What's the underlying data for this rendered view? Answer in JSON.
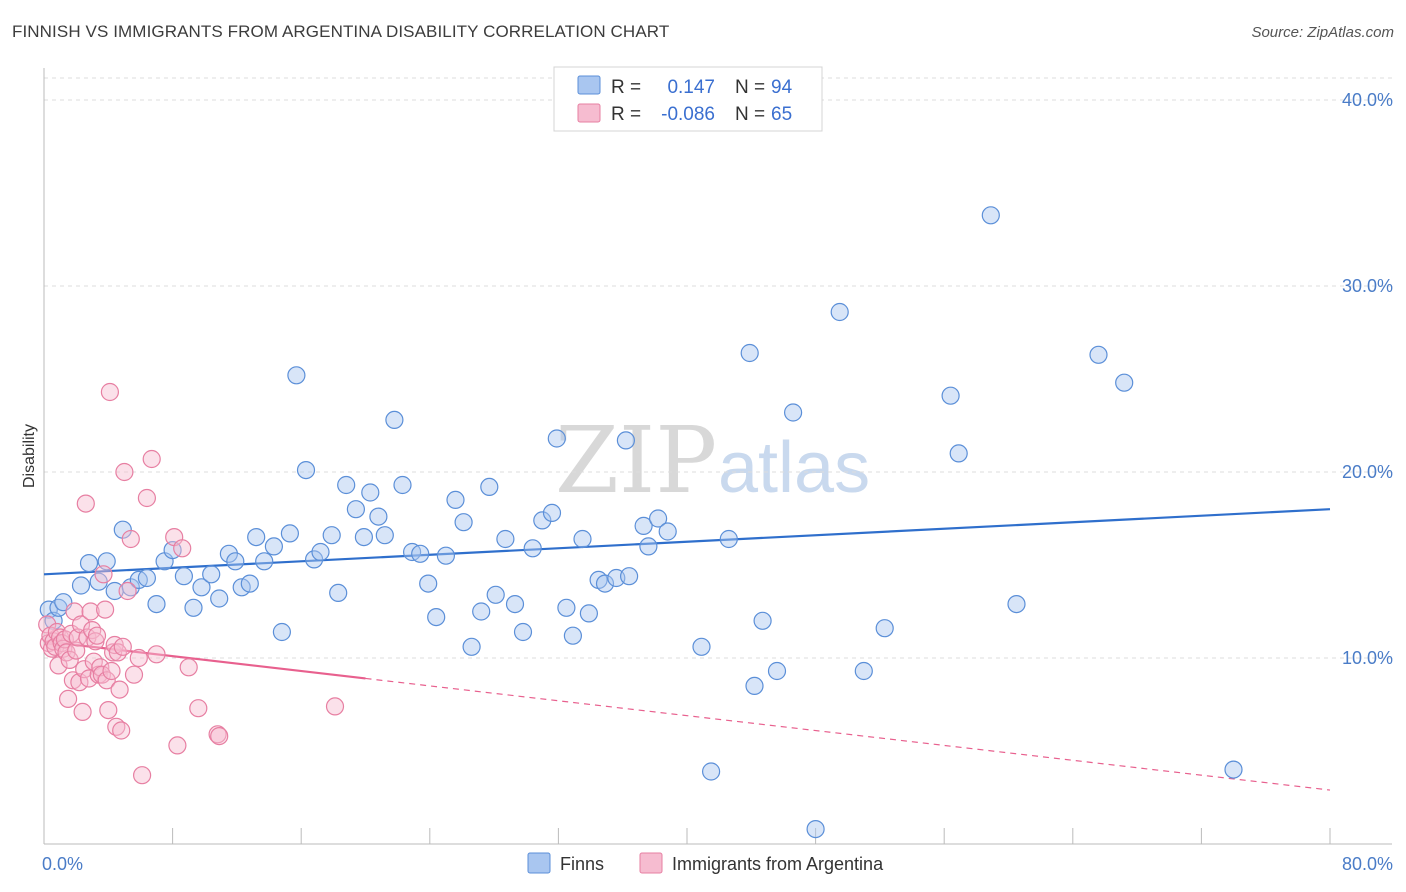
{
  "header": {
    "title": "FINNISH VS IMMIGRANTS FROM ARGENTINA DISABILITY CORRELATION CHART",
    "source": "Source: ZipAtlas.com"
  },
  "watermark": {
    "zip": "ZIP",
    "atlas": "atlas"
  },
  "legend": {
    "r_label": "R =",
    "n_label": "N =",
    "finns": {
      "r": "0.147",
      "n": "94"
    },
    "argentina": {
      "r": "-0.086",
      "n": "65"
    }
  },
  "colors": {
    "finns_stroke": "#5b8fd8",
    "finns_fill": "#a9c6f0",
    "argentina_stroke": "#e77fa2",
    "argentina_fill": "#f6bcd0",
    "finns_line": "#2f6fcc",
    "argentina_line": "#e8608e"
  },
  "chart_data": {
    "type": "scatter",
    "xlabel": "",
    "ylabel": "Disability",
    "xlim": [
      0,
      80
    ],
    "ylim": [
      0,
      40
    ],
    "x_tick_labels": [
      "0.0%",
      "80.0%"
    ],
    "y_ticks": [
      10,
      20,
      30,
      40
    ],
    "y_tick_labels": [
      "10.0%",
      "20.0%",
      "30.0%",
      "40.0%"
    ],
    "grid": true,
    "legend_position": "top-center",
    "series": [
      {
        "name": "Finns",
        "trend": {
          "x": [
            0,
            80
          ],
          "y": [
            14.5,
            18.0
          ],
          "dashed_from": null
        },
        "points": [
          [
            0.3,
            12.6
          ],
          [
            0.6,
            12.0
          ],
          [
            0.9,
            12.7
          ],
          [
            1.2,
            13.0
          ],
          [
            2.3,
            13.9
          ],
          [
            2.8,
            15.1
          ],
          [
            3.4,
            14.1
          ],
          [
            3.9,
            15.2
          ],
          [
            4.4,
            13.6
          ],
          [
            4.9,
            16.9
          ],
          [
            5.4,
            13.8
          ],
          [
            5.9,
            14.2
          ],
          [
            6.4,
            14.3
          ],
          [
            7.0,
            12.9
          ],
          [
            7.5,
            15.2
          ],
          [
            8.0,
            15.8
          ],
          [
            8.7,
            14.4
          ],
          [
            9.3,
            12.7
          ],
          [
            9.8,
            13.8
          ],
          [
            10.4,
            14.5
          ],
          [
            10.9,
            13.2
          ],
          [
            11.5,
            15.6
          ],
          [
            11.9,
            15.2
          ],
          [
            12.3,
            13.8
          ],
          [
            12.8,
            14.0
          ],
          [
            13.2,
            16.5
          ],
          [
            13.7,
            15.2
          ],
          [
            14.3,
            16.0
          ],
          [
            14.8,
            11.4
          ],
          [
            15.3,
            16.7
          ],
          [
            15.7,
            25.2
          ],
          [
            16.3,
            20.1
          ],
          [
            16.8,
            15.3
          ],
          [
            17.2,
            15.7
          ],
          [
            17.9,
            16.6
          ],
          [
            18.3,
            13.5
          ],
          [
            18.8,
            19.3
          ],
          [
            19.4,
            18.0
          ],
          [
            19.9,
            16.5
          ],
          [
            20.3,
            18.9
          ],
          [
            20.8,
            17.6
          ],
          [
            21.2,
            16.6
          ],
          [
            21.8,
            22.8
          ],
          [
            22.3,
            19.3
          ],
          [
            22.9,
            15.7
          ],
          [
            23.4,
            15.6
          ],
          [
            23.9,
            14.0
          ],
          [
            24.4,
            12.2
          ],
          [
            25.0,
            15.5
          ],
          [
            25.6,
            18.5
          ],
          [
            26.1,
            17.3
          ],
          [
            26.6,
            10.6
          ],
          [
            27.2,
            12.5
          ],
          [
            27.7,
            19.2
          ],
          [
            28.1,
            13.4
          ],
          [
            28.7,
            16.4
          ],
          [
            29.3,
            12.9
          ],
          [
            29.8,
            11.4
          ],
          [
            30.4,
            15.9
          ],
          [
            31.0,
            17.4
          ],
          [
            31.6,
            17.8
          ],
          [
            31.9,
            21.8
          ],
          [
            32.5,
            12.7
          ],
          [
            32.9,
            11.2
          ],
          [
            33.5,
            16.4
          ],
          [
            33.9,
            12.4
          ],
          [
            34.5,
            14.2
          ],
          [
            34.9,
            14.0
          ],
          [
            35.6,
            14.3
          ],
          [
            36.2,
            21.7
          ],
          [
            36.4,
            14.4
          ],
          [
            37.3,
            17.1
          ],
          [
            37.6,
            16.0
          ],
          [
            38.2,
            17.5
          ],
          [
            38.8,
            16.8
          ],
          [
            40.9,
            10.6
          ],
          [
            41.5,
            3.9
          ],
          [
            42.6,
            16.4
          ],
          [
            43.9,
            26.4
          ],
          [
            44.2,
            8.5
          ],
          [
            44.7,
            12.0
          ],
          [
            45.6,
            9.3
          ],
          [
            46.6,
            23.2
          ],
          [
            48.0,
            0.8
          ],
          [
            49.5,
            28.6
          ],
          [
            51.0,
            9.3
          ],
          [
            52.3,
            11.6
          ],
          [
            56.4,
            24.1
          ],
          [
            56.9,
            21.0
          ],
          [
            58.9,
            33.8
          ],
          [
            60.5,
            12.9
          ],
          [
            65.6,
            26.3
          ],
          [
            67.2,
            24.8
          ],
          [
            74.0,
            4.0
          ]
        ]
      },
      {
        "name": "Immigrants from Argentina",
        "trend": {
          "x": [
            0,
            80
          ],
          "y": [
            10.9,
            2.9
          ],
          "dashed_from": 20
        },
        "points": [
          [
            0.2,
            11.8
          ],
          [
            0.3,
            10.8
          ],
          [
            0.4,
            11.2
          ],
          [
            0.5,
            10.5
          ],
          [
            0.6,
            10.9
          ],
          [
            0.7,
            10.6
          ],
          [
            0.8,
            11.4
          ],
          [
            0.9,
            9.6
          ],
          [
            1.0,
            11.1
          ],
          [
            1.1,
            10.8
          ],
          [
            1.2,
            10.5
          ],
          [
            1.3,
            11.0
          ],
          [
            1.4,
            10.3
          ],
          [
            1.5,
            7.8
          ],
          [
            1.6,
            9.9
          ],
          [
            1.7,
            11.3
          ],
          [
            1.8,
            8.8
          ],
          [
            1.9,
            12.5
          ],
          [
            2.0,
            10.4
          ],
          [
            2.1,
            11.1
          ],
          [
            2.2,
            8.7
          ],
          [
            2.3,
            11.8
          ],
          [
            2.4,
            7.1
          ],
          [
            2.5,
            9.4
          ],
          [
            2.6,
            18.3
          ],
          [
            2.7,
            11.1
          ],
          [
            2.8,
            8.9
          ],
          [
            2.9,
            12.5
          ],
          [
            3.0,
            11.5
          ],
          [
            3.1,
            9.8
          ],
          [
            3.2,
            10.9
          ],
          [
            3.3,
            11.2
          ],
          [
            3.4,
            9.1
          ],
          [
            3.5,
            9.5
          ],
          [
            3.6,
            9.1
          ],
          [
            3.7,
            14.5
          ],
          [
            3.8,
            12.6
          ],
          [
            3.9,
            8.8
          ],
          [
            4.0,
            7.2
          ],
          [
            4.1,
            24.3
          ],
          [
            4.2,
            9.3
          ],
          [
            4.3,
            10.3
          ],
          [
            4.4,
            10.7
          ],
          [
            4.5,
            6.3
          ],
          [
            4.6,
            10.3
          ],
          [
            4.7,
            8.3
          ],
          [
            4.8,
            6.1
          ],
          [
            4.9,
            10.6
          ],
          [
            5.0,
            20.0
          ],
          [
            5.2,
            13.6
          ],
          [
            5.4,
            16.4
          ],
          [
            5.6,
            9.1
          ],
          [
            5.9,
            10.0
          ],
          [
            6.1,
            3.7
          ],
          [
            6.4,
            18.6
          ],
          [
            6.7,
            20.7
          ],
          [
            7.0,
            10.2
          ],
          [
            8.1,
            16.5
          ],
          [
            8.3,
            5.3
          ],
          [
            8.6,
            15.9
          ],
          [
            9.0,
            9.5
          ],
          [
            9.6,
            7.3
          ],
          [
            10.8,
            5.9
          ],
          [
            10.9,
            5.8
          ],
          [
            18.1,
            7.4
          ]
        ]
      }
    ]
  },
  "bottom_legend": {
    "finns": "Finns",
    "argentina": "Immigrants from Argentina"
  }
}
